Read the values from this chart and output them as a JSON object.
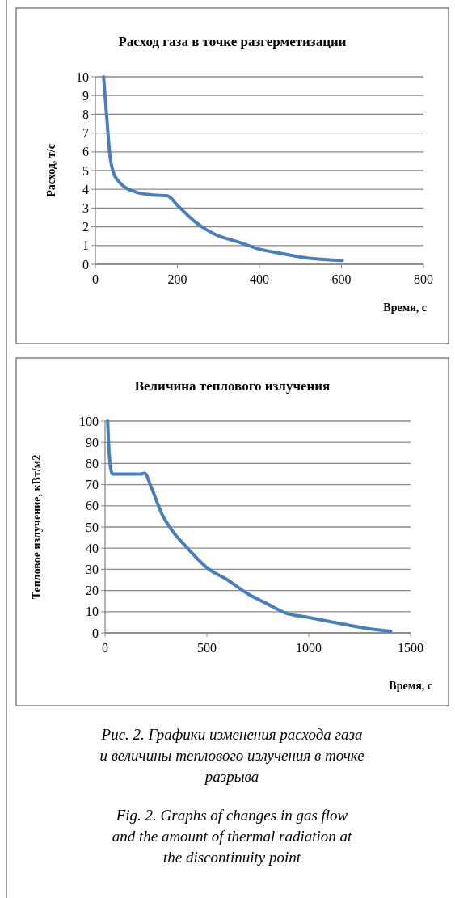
{
  "chart_data": [
    {
      "type": "line",
      "title": "Расход газа в точке разгерметизации",
      "xlabel": "Время, с",
      "ylabel": "Расход, т/с",
      "x": [
        20,
        28,
        35,
        44,
        58,
        99,
        139,
        176,
        200,
        247,
        287,
        354,
        401,
        455,
        502,
        602
      ],
      "series": [
        {
          "color": "#4a7ebb",
          "values": [
            10,
            7.8,
            5.9,
            4.9,
            4.4,
            3.85,
            3.7,
            3.65,
            3.15,
            2.2,
            1.65,
            1.15,
            0.8,
            0.57,
            0.38,
            0.2
          ]
        }
      ],
      "xlim": [
        0,
        800
      ],
      "xticks": [
        0,
        200,
        400,
        600,
        800
      ],
      "ylim": [
        0,
        10
      ],
      "yticks": [
        0,
        1,
        2,
        3,
        4,
        5,
        6,
        7,
        8,
        9,
        10
      ],
      "grid": "y"
    },
    {
      "type": "line",
      "title": "Величина теплового излучения",
      "xlabel": "Время, с",
      "ylabel": "Тепловое излучение, кВт/м2",
      "x": [
        13,
        20,
        36,
        174,
        194,
        227,
        280,
        320,
        412,
        505,
        597,
        703,
        795,
        888,
        994,
        1166,
        1311,
        1403
      ],
      "series": [
        {
          "color": "#4a7ebb",
          "values": [
            100,
            85,
            75,
            75,
            75.4,
            68.7,
            56,
            49.6,
            39.3,
            30.4,
            25.3,
            18.3,
            13.8,
            9.3,
            7.4,
            4.2,
            1.7,
            0.8
          ]
        }
      ],
      "xlim": [
        0,
        1500
      ],
      "xticks": [
        0,
        500,
        1000,
        1500
      ],
      "ylim": [
        0,
        100
      ],
      "yticks": [
        0,
        10,
        20,
        30,
        40,
        50,
        60,
        70,
        80,
        90,
        100
      ],
      "grid": "y",
      "annotations": [
        "Рис. 2. Графики изменения расхода газа и величины теплового излучения в точке разрыва",
        "Fig. 2. Graphs of changes in gas flow and the amount of thermal radiation at the discontinuity point"
      ]
    }
  ]
}
